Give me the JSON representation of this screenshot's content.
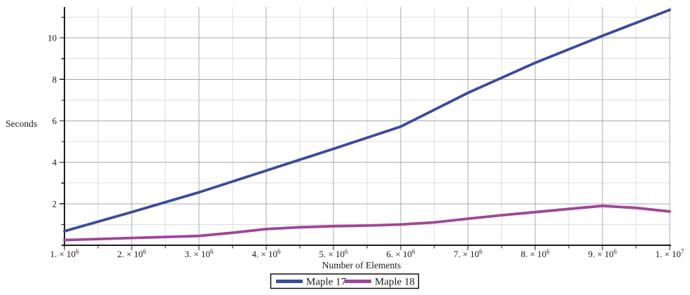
{
  "chart_data": {
    "type": "line",
    "title": "",
    "xlabel": "Number of Elements",
    "ylabel": "Seconds",
    "xlim": [
      1000000,
      10000000
    ],
    "ylim": [
      0,
      11.5
    ],
    "grid": "major and minor, light gray",
    "legend_position": "bottom-center boxed",
    "x_ticks": [
      {
        "coef": "1.",
        "exp": "6",
        "value": 1000000
      },
      {
        "coef": "2.",
        "exp": "6",
        "value": 2000000
      },
      {
        "coef": "3.",
        "exp": "6",
        "value": 3000000
      },
      {
        "coef": "4.",
        "exp": "6",
        "value": 4000000
      },
      {
        "coef": "5.",
        "exp": "6",
        "value": 5000000
      },
      {
        "coef": "6.",
        "exp": "6",
        "value": 6000000
      },
      {
        "coef": "7.",
        "exp": "6",
        "value": 7000000
      },
      {
        "coef": "8.",
        "exp": "6",
        "value": 8000000
      },
      {
        "coef": "9.",
        "exp": "6",
        "value": 9000000
      },
      {
        "coef": "1.",
        "exp": "7",
        "value": 10000000
      }
    ],
    "y_ticks": [
      2,
      4,
      6,
      8,
      10
    ],
    "series": [
      {
        "name": "Maple 17",
        "color": "#3B4B9C",
        "x_millions": [
          1,
          2,
          3,
          4,
          5,
          6,
          7,
          8,
          9,
          10
        ],
        "seconds": [
          0.68,
          1.6,
          2.55,
          3.6,
          4.65,
          5.72,
          7.35,
          8.8,
          10.1,
          11.35
        ]
      },
      {
        "name": "Maple 18",
        "color": "#A04699",
        "x_millions": [
          1,
          1.5,
          2,
          2.5,
          3,
          3.5,
          4,
          4.5,
          5,
          5.5,
          6,
          6.5,
          7,
          7.5,
          8,
          8.5,
          9,
          9.5,
          10
        ],
        "seconds": [
          0.25,
          0.3,
          0.35,
          0.4,
          0.45,
          0.6,
          0.78,
          0.87,
          0.92,
          0.95,
          1.0,
          1.1,
          1.28,
          1.45,
          1.6,
          1.75,
          1.9,
          1.8,
          1.63
        ]
      }
    ]
  },
  "colors": {
    "grid_major": "#a8a8a8",
    "grid_minor": "#dedede",
    "axis": "#1c1c1c",
    "text": "#1a1a1a",
    "legend_border": "#000000",
    "background": "#ffffff"
  }
}
